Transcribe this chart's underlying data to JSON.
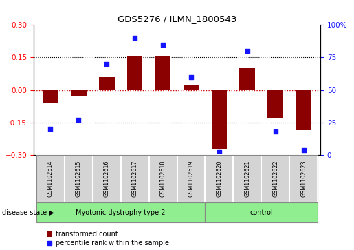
{
  "title": "GDS5276 / ILMN_1800543",
  "samples": [
    "GSM1102614",
    "GSM1102615",
    "GSM1102616",
    "GSM1102617",
    "GSM1102618",
    "GSM1102619",
    "GSM1102620",
    "GSM1102621",
    "GSM1102622",
    "GSM1102623"
  ],
  "transformed_count": [
    -0.06,
    -0.03,
    0.06,
    0.155,
    0.155,
    0.02,
    -0.27,
    0.1,
    -0.13,
    -0.185
  ],
  "percentile_rank": [
    20,
    27,
    70,
    90,
    85,
    60,
    2,
    80,
    18,
    4
  ],
  "disease_groups": [
    {
      "label": "Myotonic dystrophy type 2",
      "start": 0,
      "end": 6,
      "color": "#90EE90"
    },
    {
      "label": "control",
      "start": 6,
      "end": 10,
      "color": "#90EE90"
    }
  ],
  "ylim_left": [
    -0.3,
    0.3
  ],
  "ylim_right": [
    0,
    100
  ],
  "yticks_left": [
    -0.3,
    -0.15,
    0.0,
    0.15,
    0.3
  ],
  "yticks_right": [
    0,
    25,
    50,
    75,
    100
  ],
  "bar_color": "#8B0000",
  "dot_color": "#1414FF",
  "hline_color": "#CC0000",
  "dotted_color": "black",
  "bg_color": "white",
  "legend_bar_label": "transformed count",
  "legend_dot_label": "percentile rank within the sample",
  "disease_state_label": "disease state"
}
